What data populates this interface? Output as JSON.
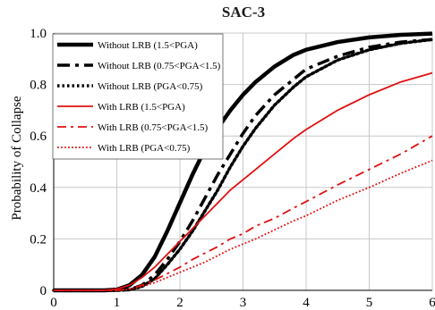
{
  "chart_data": {
    "type": "line",
    "title": "SAC-3",
    "xlabel": "",
    "ylabel": "Probability of Collapse",
    "xlim": [
      0,
      6
    ],
    "ylim": [
      0,
      1.0
    ],
    "xticks": [
      "0",
      "1",
      "2",
      "3",
      "4",
      "5",
      "6"
    ],
    "yticks": [
      "0",
      "0.2",
      "0.4",
      "0.6",
      "0.8",
      "1.0"
    ],
    "grid": true,
    "legend_position": "top-left",
    "series": [
      {
        "name": "Without LRB (1.5<PGA)",
        "color": "#000000",
        "style": "solid",
        "width": 4.5,
        "x": [
          0,
          0.8,
          1.0,
          1.2,
          1.4,
          1.6,
          1.8,
          2.0,
          2.2,
          2.4,
          2.6,
          2.8,
          3.0,
          3.2,
          3.5,
          3.8,
          4.0,
          4.5,
          5.0,
          5.5,
          6.0
        ],
        "y": [
          0,
          0.0,
          0.003,
          0.02,
          0.06,
          0.13,
          0.23,
          0.34,
          0.45,
          0.55,
          0.63,
          0.7,
          0.76,
          0.81,
          0.87,
          0.915,
          0.935,
          0.965,
          0.983,
          0.993,
          0.998
        ]
      },
      {
        "name": "Without LRB (0.75<PGA<1.5)",
        "color": "#000000",
        "style": "dashdot",
        "width": 3.5,
        "x": [
          0,
          1.0,
          1.2,
          1.4,
          1.6,
          1.8,
          2.0,
          2.2,
          2.4,
          2.6,
          2.8,
          3.0,
          3.2,
          3.5,
          3.8,
          4.0,
          4.5,
          5.0,
          5.5,
          6.0
        ],
        "y": [
          0,
          0.0,
          0.003,
          0.02,
          0.06,
          0.12,
          0.19,
          0.27,
          0.36,
          0.45,
          0.53,
          0.61,
          0.68,
          0.76,
          0.82,
          0.86,
          0.91,
          0.945,
          0.965,
          0.975
        ]
      },
      {
        "name": "Without LRB (PGA<0.75)",
        "color": "#000000",
        "style": "dotted",
        "width": 3.5,
        "x": [
          0,
          1.0,
          1.2,
          1.4,
          1.6,
          1.8,
          2.0,
          2.2,
          2.4,
          2.6,
          2.8,
          3.0,
          3.2,
          3.5,
          3.8,
          4.0,
          4.5,
          5.0,
          5.5,
          6.0
        ],
        "y": [
          0,
          0.0,
          0.002,
          0.015,
          0.045,
          0.1,
          0.16,
          0.23,
          0.31,
          0.39,
          0.48,
          0.56,
          0.63,
          0.72,
          0.79,
          0.83,
          0.895,
          0.935,
          0.96,
          0.975
        ]
      },
      {
        "name": "With LRB (1.5<PGA)",
        "color": "#e01010",
        "style": "solid",
        "width": 1.8,
        "x": [
          0,
          0.8,
          1.0,
          1.2,
          1.4,
          1.6,
          1.8,
          2.0,
          2.2,
          2.4,
          2.6,
          2.8,
          3.0,
          3.2,
          3.5,
          3.8,
          4.0,
          4.5,
          5.0,
          5.5,
          6.0
        ],
        "y": [
          0,
          0.0,
          0.005,
          0.02,
          0.05,
          0.09,
          0.14,
          0.19,
          0.24,
          0.29,
          0.34,
          0.39,
          0.43,
          0.47,
          0.53,
          0.59,
          0.625,
          0.7,
          0.76,
          0.81,
          0.845
        ]
      },
      {
        "name": "With LRB (0.75<PGA<1.5)",
        "color": "#e01010",
        "style": "dashdot",
        "width": 1.8,
        "x": [
          0,
          1.0,
          1.2,
          1.4,
          1.6,
          1.8,
          2.0,
          2.2,
          2.4,
          2.6,
          2.8,
          3.0,
          3.2,
          3.5,
          3.8,
          4.0,
          4.5,
          5.0,
          5.5,
          6.0
        ],
        "y": [
          0,
          0.0,
          0.005,
          0.02,
          0.04,
          0.065,
          0.09,
          0.12,
          0.145,
          0.17,
          0.2,
          0.22,
          0.25,
          0.28,
          0.32,
          0.345,
          0.41,
          0.47,
          0.53,
          0.6
        ]
      },
      {
        "name": "With LRB (PGA<0.75)",
        "color": "#e01010",
        "style": "dotted",
        "width": 1.8,
        "x": [
          0,
          1.0,
          1.2,
          1.4,
          1.6,
          1.8,
          2.0,
          2.2,
          2.4,
          2.6,
          2.8,
          3.0,
          3.2,
          3.5,
          3.8,
          4.0,
          4.5,
          5.0,
          5.5,
          6.0
        ],
        "y": [
          0,
          0.0,
          0.004,
          0.015,
          0.03,
          0.05,
          0.07,
          0.09,
          0.11,
          0.135,
          0.16,
          0.18,
          0.2,
          0.235,
          0.27,
          0.29,
          0.35,
          0.4,
          0.455,
          0.505
        ]
      }
    ]
  }
}
